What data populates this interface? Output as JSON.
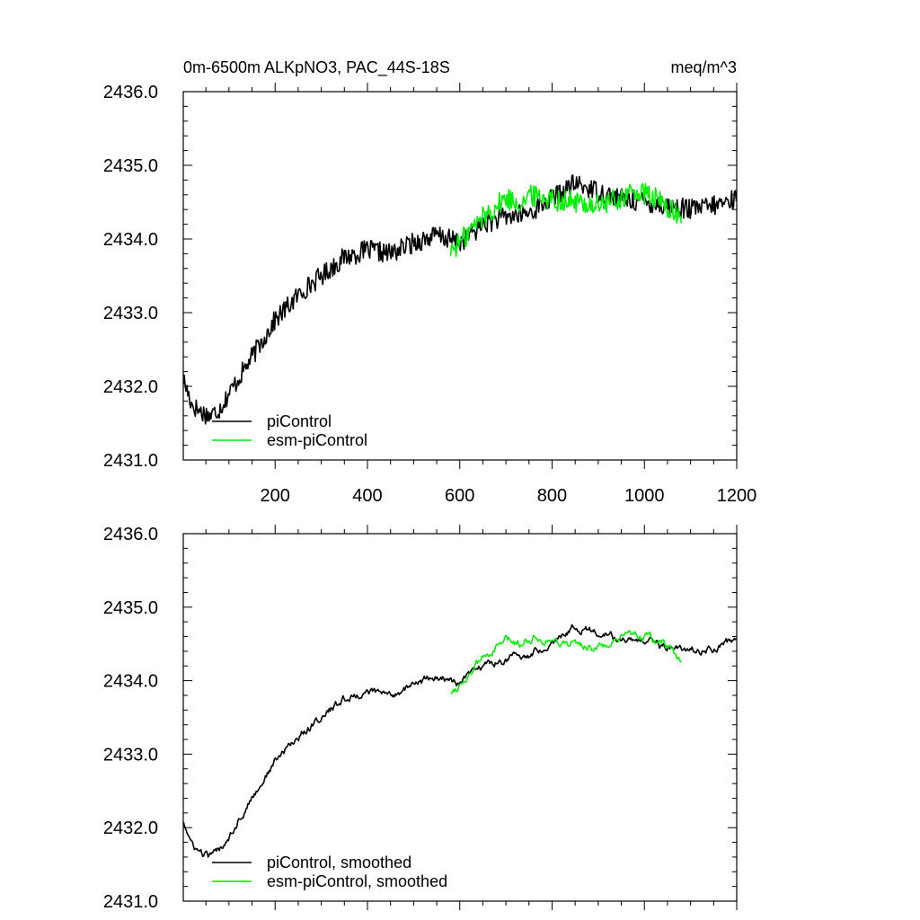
{
  "header": {
    "title": "0m-6500m ALKpNO3, PAC_44S-18S",
    "units": "meq/m^3"
  },
  "colors": {
    "picontrol": "#000000",
    "esm_picontrol": "#00ee00",
    "frame": "#000000"
  },
  "chart_data": [
    {
      "type": "line",
      "title": "0m-6500m ALKpNO3, PAC_44S-18S",
      "units": "meq/m^3",
      "xlim": [
        1,
        1200
      ],
      "ylim": [
        2431.0,
        2436.0
      ],
      "xticks": [
        200,
        400,
        600,
        800,
        1000,
        1200
      ],
      "xtick_labels": [
        "200",
        "400",
        "600",
        "800",
        "1000",
        "1200"
      ],
      "yticks": [
        2431.0,
        2432.0,
        2433.0,
        2434.0,
        2435.0,
        2436.0
      ],
      "ytick_labels": [
        "2431.0",
        "2432.0",
        "2433.0",
        "2434.0",
        "2435.0",
        "2436.0"
      ],
      "legend_position": "bottom-left",
      "series": [
        {
          "name": "piControl",
          "color": "#000000",
          "x": [
            1,
            20,
            40,
            60,
            80,
            100,
            120,
            150,
            180,
            200,
            230,
            260,
            300,
            350,
            400,
            450,
            500,
            550,
            600,
            650,
            700,
            750,
            800,
            850,
            900,
            950,
            1000,
            1050,
            1100,
            1150,
            1200
          ],
          "values": [
            2432.1,
            2431.75,
            2431.65,
            2431.6,
            2431.7,
            2431.9,
            2432.1,
            2432.4,
            2432.7,
            2432.9,
            2433.1,
            2433.3,
            2433.5,
            2433.75,
            2433.85,
            2433.8,
            2433.95,
            2434.05,
            2433.95,
            2434.2,
            2434.3,
            2434.35,
            2434.55,
            2434.75,
            2434.65,
            2434.55,
            2434.5,
            2434.45,
            2434.4,
            2434.45,
            2434.55
          ]
        },
        {
          "name": "esm-piControl",
          "color": "#00ee00",
          "x": [
            580,
            600,
            620,
            650,
            680,
            700,
            730,
            760,
            800,
            850,
            900,
            950,
            980,
            1000,
            1020,
            1050,
            1070,
            1080
          ],
          "values": [
            2433.85,
            2433.95,
            2434.1,
            2434.3,
            2434.45,
            2434.55,
            2434.5,
            2434.6,
            2434.55,
            2434.5,
            2434.45,
            2434.55,
            2434.65,
            2434.6,
            2434.55,
            2434.45,
            2434.3,
            2434.25
          ]
        }
      ]
    },
    {
      "type": "line",
      "title": "",
      "xlim": [
        1,
        1200
      ],
      "ylim": [
        2431.0,
        2436.0
      ],
      "yticks": [
        2431.0,
        2432.0,
        2433.0,
        2434.0,
        2435.0,
        2436.0
      ],
      "ytick_labels": [
        "2431.0",
        "2432.0",
        "2433.0",
        "2434.0",
        "2435.0",
        "2436.0"
      ],
      "legend_position": "bottom-left",
      "series": [
        {
          "name": "piControl, smoothed",
          "color": "#000000",
          "x": [
            1,
            20,
            40,
            60,
            80,
            100,
            120,
            150,
            180,
            200,
            230,
            260,
            300,
            350,
            400,
            450,
            500,
            550,
            600,
            650,
            700,
            750,
            800,
            850,
            900,
            950,
            1000,
            1050,
            1100,
            1150,
            1200
          ],
          "values": [
            2432.1,
            2431.75,
            2431.65,
            2431.6,
            2431.7,
            2431.9,
            2432.1,
            2432.4,
            2432.7,
            2432.9,
            2433.1,
            2433.3,
            2433.5,
            2433.75,
            2433.85,
            2433.8,
            2433.95,
            2434.05,
            2433.95,
            2434.2,
            2434.3,
            2434.35,
            2434.55,
            2434.75,
            2434.65,
            2434.55,
            2434.5,
            2434.45,
            2434.4,
            2434.45,
            2434.55
          ]
        },
        {
          "name": "esm-piControl, smoothed",
          "color": "#00ee00",
          "x": [
            580,
            600,
            620,
            650,
            680,
            700,
            730,
            760,
            800,
            850,
            900,
            950,
            980,
            1000,
            1020,
            1050,
            1070,
            1080
          ],
          "values": [
            2433.85,
            2433.95,
            2434.1,
            2434.3,
            2434.45,
            2434.55,
            2434.5,
            2434.6,
            2434.55,
            2434.5,
            2434.45,
            2434.55,
            2434.65,
            2434.6,
            2434.55,
            2434.45,
            2434.3,
            2434.25
          ]
        }
      ]
    }
  ]
}
